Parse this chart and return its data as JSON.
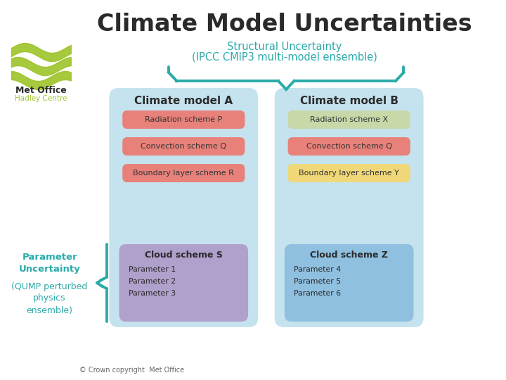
{
  "title": "Climate Model Uncertainties",
  "structural_label": "Structural Uncertainty",
  "structural_sublabel": "(IPCC CMIP3 multi-model ensemble)",
  "param_label": "Parameter\nUncertainty",
  "param_sublabel": "(QUMP perturbed\nphysics\nensemble)",
  "model_a_title": "Climate model A",
  "model_b_title": "Climate model B",
  "model_a_schemes": [
    "Radiation scheme P",
    "Convection scheme Q",
    "Boundary layer scheme R"
  ],
  "model_b_schemes": [
    "Radiation scheme X",
    "Convection scheme Q",
    "Boundary layer scheme Y"
  ],
  "scheme_colors_a": [
    "#e8817a",
    "#e8817a",
    "#e8817a"
  ],
  "scheme_colors_b": [
    "#c8d8a8",
    "#e8817a",
    "#f0d878"
  ],
  "cloud_a_title": "Cloud scheme S",
  "cloud_b_title": "Cloud scheme Z",
  "cloud_a_params": [
    "Parameter 1",
    "Parameter 2",
    "Parameter 3"
  ],
  "cloud_b_params": [
    "Parameter 4",
    "Parameter 5",
    "Parameter 6"
  ],
  "cloud_box_color_a": "#b0a0cc",
  "cloud_box_color_b": "#90c0e0",
  "model_box_color": "#c5e3ee",
  "teal_color": "#2aabaa",
  "title_color": "#2a2a2a",
  "structural_text_color": "#2aabaa",
  "param_text_color": "#2aabaa",
  "copyright_text": "© Crown copyright  Met Office",
  "bg_color": "#ffffff",
  "logo_wave_color": "#9dc428",
  "logo_text_color": "#2a2a2a",
  "logo_hadley_color": "#9dc428"
}
